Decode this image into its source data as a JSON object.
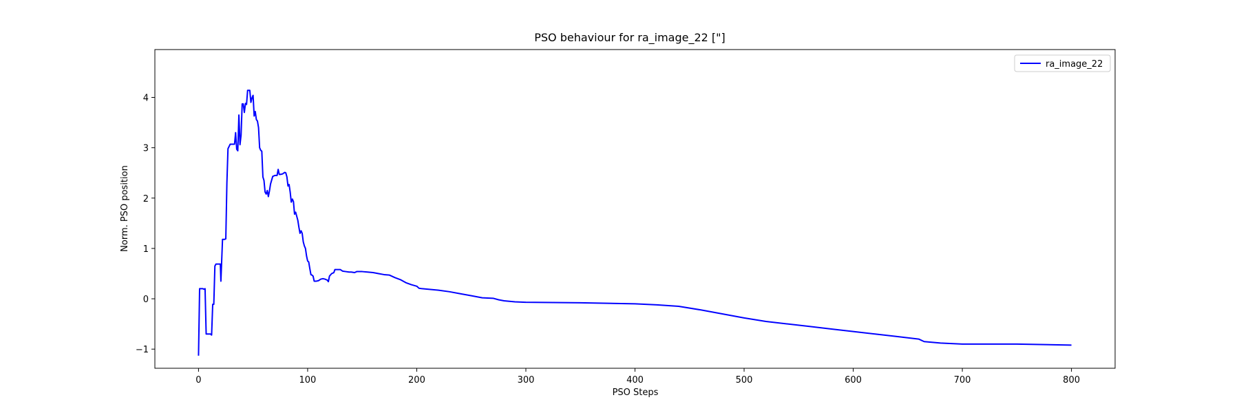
{
  "chart_data": {
    "type": "line",
    "title": "PSO behaviour for ra_image_22 [\"]",
    "xlabel": "PSO Steps",
    "ylabel": "Norm. PSO position",
    "xlim": [
      -40,
      840
    ],
    "ylim": [
      -1.38,
      4.95
    ],
    "xticks": [
      0,
      100,
      200,
      300,
      400,
      500,
      600,
      700,
      800
    ],
    "xtick_labels": [
      "0",
      "100",
      "200",
      "300",
      "400",
      "500",
      "600",
      "700",
      "800"
    ],
    "yticks": [
      -1,
      0,
      1,
      2,
      3,
      4
    ],
    "ytick_labels": [
      "−1",
      "0",
      "1",
      "2",
      "3",
      "4"
    ],
    "grid": false,
    "legend_position": "top-right",
    "series": [
      {
        "name": "ra_image_22",
        "color": "#0000ff",
        "points": [
          [
            0,
            -1.13
          ],
          [
            1,
            0.2
          ],
          [
            4,
            0.2
          ],
          [
            5,
            0.19
          ],
          [
            6,
            0.2
          ],
          [
            7,
            -0.7
          ],
          [
            8,
            -0.7
          ],
          [
            11,
            -0.7
          ],
          [
            12,
            -0.72
          ],
          [
            13,
            -0.11
          ],
          [
            14,
            -0.11
          ],
          [
            15,
            0.65
          ],
          [
            16,
            0.69
          ],
          [
            18,
            0.69
          ],
          [
            20,
            0.69
          ],
          [
            20.5,
            0.35
          ],
          [
            22,
            1.18
          ],
          [
            24,
            1.18
          ],
          [
            25,
            1.19
          ],
          [
            26,
            2.3
          ],
          [
            27,
            2.98
          ],
          [
            29,
            3.07
          ],
          [
            32,
            3.07
          ],
          [
            33,
            3.07
          ],
          [
            34,
            3.3
          ],
          [
            35,
            2.97
          ],
          [
            36,
            2.94
          ],
          [
            37,
            3.65
          ],
          [
            38,
            3.06
          ],
          [
            39,
            3.25
          ],
          [
            40,
            3.87
          ],
          [
            41,
            3.87
          ],
          [
            42,
            3.7
          ],
          [
            43,
            3.88
          ],
          [
            44,
            3.86
          ],
          [
            45,
            4.14
          ],
          [
            47,
            4.14
          ],
          [
            48,
            3.9
          ],
          [
            49,
            3.99
          ],
          [
            50,
            4.04
          ],
          [
            51,
            3.63
          ],
          [
            52,
            3.72
          ],
          [
            53,
            3.56
          ],
          [
            54,
            3.53
          ],
          [
            55,
            3.4
          ],
          [
            56,
            3.0
          ],
          [
            57,
            2.95
          ],
          [
            58,
            2.93
          ],
          [
            59,
            2.42
          ],
          [
            60,
            2.35
          ],
          [
            61,
            2.12
          ],
          [
            62,
            2.08
          ],
          [
            63,
            2.15
          ],
          [
            64,
            2.03
          ],
          [
            65,
            2.14
          ],
          [
            66,
            2.28
          ],
          [
            68,
            2.43
          ],
          [
            70,
            2.45
          ],
          [
            72,
            2.45
          ],
          [
            73,
            2.57
          ],
          [
            74,
            2.47
          ],
          [
            75,
            2.47
          ],
          [
            77,
            2.48
          ],
          [
            79,
            2.51
          ],
          [
            80,
            2.5
          ],
          [
            81,
            2.42
          ],
          [
            82,
            2.24
          ],
          [
            83,
            2.27
          ],
          [
            84,
            2.12
          ],
          [
            85,
            1.92
          ],
          [
            86,
            1.98
          ],
          [
            87,
            1.93
          ],
          [
            88,
            1.68
          ],
          [
            89,
            1.72
          ],
          [
            90,
            1.64
          ],
          [
            91,
            1.56
          ],
          [
            92,
            1.42
          ],
          [
            93,
            1.3
          ],
          [
            94,
            1.35
          ],
          [
            95,
            1.3
          ],
          [
            96,
            1.13
          ],
          [
            97,
            1.05
          ],
          [
            98,
            1.0
          ],
          [
            99,
            0.85
          ],
          [
            100,
            0.75
          ],
          [
            101,
            0.73
          ],
          [
            102,
            0.6
          ],
          [
            103,
            0.48
          ],
          [
            104,
            0.47
          ],
          [
            105,
            0.45
          ],
          [
            106,
            0.35
          ],
          [
            108,
            0.35
          ],
          [
            110,
            0.36
          ],
          [
            112,
            0.39
          ],
          [
            114,
            0.4
          ],
          [
            116,
            0.39
          ],
          [
            118,
            0.37
          ],
          [
            119,
            0.34
          ],
          [
            120,
            0.45
          ],
          [
            122,
            0.5
          ],
          [
            124,
            0.52
          ],
          [
            125,
            0.58
          ],
          [
            127,
            0.58
          ],
          [
            130,
            0.58
          ],
          [
            132,
            0.55
          ],
          [
            135,
            0.54
          ],
          [
            138,
            0.53
          ],
          [
            140,
            0.53
          ],
          [
            143,
            0.52
          ],
          [
            145,
            0.54
          ],
          [
            150,
            0.54
          ],
          [
            155,
            0.53
          ],
          [
            160,
            0.52
          ],
          [
            165,
            0.5
          ],
          [
            170,
            0.48
          ],
          [
            175,
            0.47
          ],
          [
            180,
            0.42
          ],
          [
            185,
            0.38
          ],
          [
            190,
            0.32
          ],
          [
            195,
            0.28
          ],
          [
            200,
            0.25
          ],
          [
            202,
            0.21
          ],
          [
            205,
            0.2
          ],
          [
            210,
            0.19
          ],
          [
            220,
            0.17
          ],
          [
            230,
            0.14
          ],
          [
            240,
            0.1
          ],
          [
            250,
            0.06
          ],
          [
            260,
            0.02
          ],
          [
            270,
            0.01
          ],
          [
            275,
            -0.02
          ],
          [
            280,
            -0.04
          ],
          [
            290,
            -0.06
          ],
          [
            300,
            -0.07
          ],
          [
            350,
            -0.08
          ],
          [
            400,
            -0.1
          ],
          [
            420,
            -0.12
          ],
          [
            440,
            -0.15
          ],
          [
            460,
            -0.22
          ],
          [
            480,
            -0.3
          ],
          [
            500,
            -0.38
          ],
          [
            520,
            -0.45
          ],
          [
            540,
            -0.5
          ],
          [
            560,
            -0.55
          ],
          [
            580,
            -0.6
          ],
          [
            600,
            -0.65
          ],
          [
            620,
            -0.7
          ],
          [
            640,
            -0.75
          ],
          [
            660,
            -0.8
          ],
          [
            665,
            -0.85
          ],
          [
            680,
            -0.88
          ],
          [
            700,
            -0.9
          ],
          [
            750,
            -0.9
          ],
          [
            800,
            -0.92
          ]
        ]
      }
    ]
  }
}
